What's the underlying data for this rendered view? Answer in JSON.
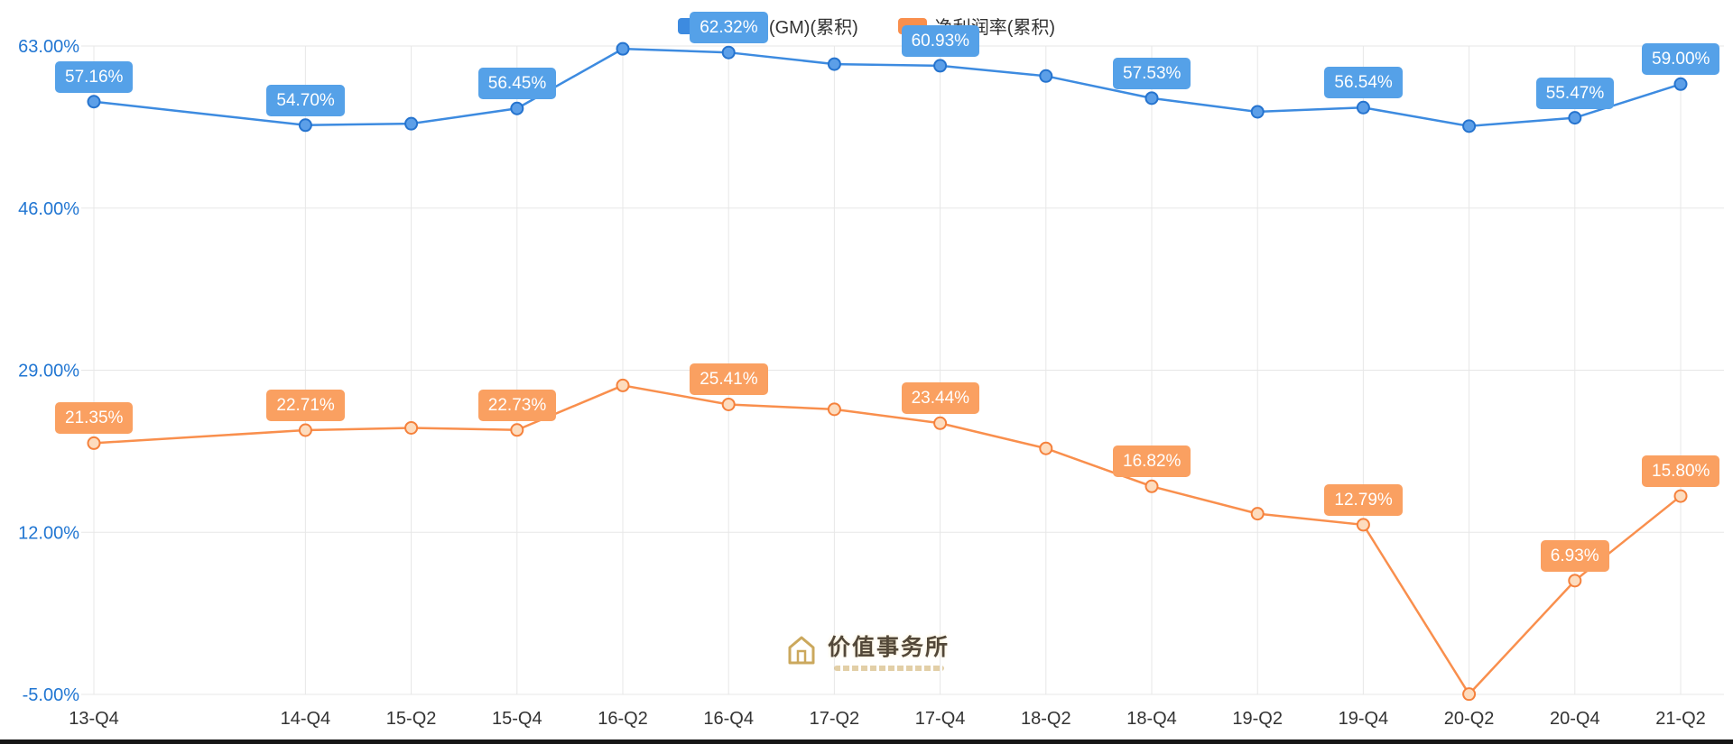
{
  "chart_data": {
    "type": "line",
    "title": "",
    "legend_position": "top-center",
    "grid": true,
    "x_axis": {
      "categories": [
        "13-Q4",
        "14-Q4",
        "15-Q2",
        "15-Q4",
        "16-Q2",
        "16-Q4",
        "17-Q2",
        "17-Q4",
        "18-Q2",
        "18-Q4",
        "19-Q2",
        "19-Q4",
        "20-Q2",
        "20-Q4",
        "21-Q2"
      ],
      "units": [
        0,
        2,
        3,
        4,
        5,
        6,
        7,
        8,
        9,
        10,
        11,
        12,
        13,
        14,
        15
      ]
    },
    "y_axis": {
      "min": -5,
      "max": 63,
      "ticks": [
        {
          "label": "63.00%",
          "value": 63
        },
        {
          "label": "46.00%",
          "value": 46
        },
        {
          "label": "29.00%",
          "value": 29
        },
        {
          "label": "12.00%",
          "value": 12
        },
        {
          "label": "-5.00%",
          "value": -5
        }
      ]
    },
    "style": {
      "grid_color": "#E7E7E7",
      "y_label_color": "#2176D2",
      "x_label_color": "#333333"
    },
    "series": [
      {
        "name": "毛利率(GM)(累积)",
        "line_color": "#3D8BE0",
        "dot_fill": "#5C9FE8",
        "dot_stroke": "#2573CE",
        "badge_color": "#55A1E8",
        "values": [
          57.16,
          54.7,
          54.85,
          56.45,
          62.7,
          62.32,
          61.1,
          60.93,
          59.85,
          57.53,
          56.1,
          56.54,
          54.6,
          55.47,
          59.0
        ],
        "labels": [
          "57.16%",
          "54.70%",
          null,
          "56.45%",
          null,
          "62.32%",
          null,
          "60.93%",
          null,
          "57.53%",
          null,
          "56.54%",
          null,
          "55.47%",
          "59.00%"
        ]
      },
      {
        "name": "净利润率(累积)",
        "line_color": "#F98F4D",
        "dot_fill": "#FDDCBE",
        "dot_stroke": "#F5813C",
        "badge_color": "#FAA061",
        "values": [
          21.35,
          22.71,
          22.95,
          22.73,
          27.4,
          25.41,
          24.9,
          23.44,
          20.8,
          16.82,
          13.95,
          12.79,
          -4.97,
          6.93,
          15.8
        ],
        "labels": [
          "21.35%",
          "22.71%",
          null,
          "22.73%",
          null,
          "25.41%",
          null,
          "23.44%",
          null,
          "16.82%",
          null,
          "12.79%",
          null,
          "6.93%",
          "15.80%"
        ]
      }
    ]
  },
  "watermark": {
    "text": "价值事务所"
  }
}
